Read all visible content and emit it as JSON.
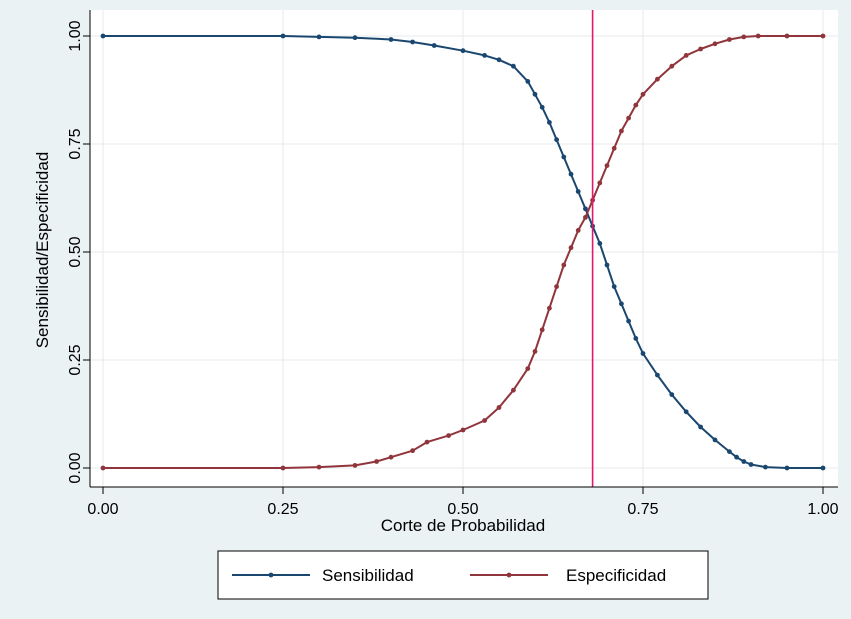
{
  "chart_data": {
    "type": "line",
    "xlabel": "Corte de Probabilidad",
    "ylabel": "Sensibilidad/Especificidad",
    "xlim": [
      0,
      1
    ],
    "ylim": [
      0,
      1
    ],
    "x_ticks": [
      "0.00",
      "0.25",
      "0.50",
      "0.75",
      "1.00"
    ],
    "y_ticks": [
      "0.00",
      "0.25",
      "0.50",
      "0.75",
      "1.00"
    ],
    "grid": true,
    "legend_position": "bottom",
    "cutoff_line_x": 0.68,
    "series": [
      {
        "name": "Sensibilidad",
        "color": "#1a476f",
        "x": [
          0,
          0.25,
          0.3,
          0.35,
          0.4,
          0.43,
          0.46,
          0.5,
          0.53,
          0.55,
          0.57,
          0.59,
          0.6,
          0.61,
          0.62,
          0.63,
          0.64,
          0.65,
          0.66,
          0.67,
          0.68,
          0.69,
          0.7,
          0.71,
          0.72,
          0.73,
          0.74,
          0.75,
          0.77,
          0.79,
          0.81,
          0.83,
          0.85,
          0.87,
          0.88,
          0.89,
          0.9,
          0.92,
          0.95,
          1.0
        ],
        "values": [
          1,
          1,
          0.998,
          0.996,
          0.992,
          0.986,
          0.978,
          0.966,
          0.955,
          0.945,
          0.93,
          0.895,
          0.865,
          0.835,
          0.8,
          0.76,
          0.72,
          0.68,
          0.64,
          0.6,
          0.56,
          0.52,
          0.47,
          0.42,
          0.38,
          0.34,
          0.3,
          0.265,
          0.215,
          0.17,
          0.13,
          0.095,
          0.065,
          0.038,
          0.025,
          0.015,
          0.008,
          0.002,
          0,
          0
        ]
      },
      {
        "name": "Especificidad",
        "color": "#90353b",
        "x": [
          0,
          0.25,
          0.3,
          0.35,
          0.38,
          0.4,
          0.43,
          0.45,
          0.48,
          0.5,
          0.53,
          0.55,
          0.57,
          0.59,
          0.6,
          0.61,
          0.62,
          0.63,
          0.64,
          0.65,
          0.66,
          0.67,
          0.68,
          0.69,
          0.7,
          0.71,
          0.72,
          0.73,
          0.74,
          0.75,
          0.77,
          0.79,
          0.81,
          0.83,
          0.85,
          0.87,
          0.89,
          0.91,
          0.95,
          1.0
        ],
        "values": [
          0,
          0,
          0.002,
          0.006,
          0.015,
          0.025,
          0.04,
          0.06,
          0.075,
          0.088,
          0.11,
          0.14,
          0.18,
          0.23,
          0.27,
          0.32,
          0.37,
          0.42,
          0.47,
          0.51,
          0.55,
          0.58,
          0.62,
          0.66,
          0.7,
          0.74,
          0.78,
          0.81,
          0.84,
          0.865,
          0.9,
          0.93,
          0.955,
          0.97,
          0.982,
          0.992,
          0.998,
          1,
          1,
          1
        ]
      }
    ]
  }
}
